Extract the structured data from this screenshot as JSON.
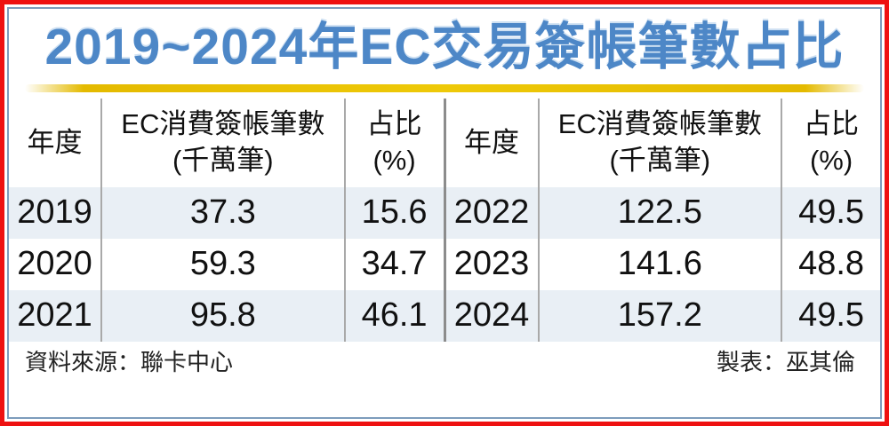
{
  "title": "2019~2024年EC交易簽帳筆數占比",
  "headers": {
    "year": "年度",
    "count_line1": "EC消費簽帳筆數",
    "count_line2": "(千萬筆)",
    "ratio_line1": "占比",
    "ratio_line2": "(%)"
  },
  "tables": [
    {
      "rows": [
        {
          "year": "2019",
          "count": "37.3",
          "ratio": "15.6"
        },
        {
          "year": "2020",
          "count": "59.3",
          "ratio": "34.7"
        },
        {
          "year": "2021",
          "count": "95.8",
          "ratio": "46.1"
        }
      ]
    },
    {
      "rows": [
        {
          "year": "2022",
          "count": "122.5",
          "ratio": "49.5"
        },
        {
          "year": "2023",
          "count": "141.6",
          "ratio": "48.8"
        },
        {
          "year": "2024",
          "count": "157.2",
          "ratio": "49.5"
        }
      ]
    }
  ],
  "footer": {
    "source": "資料來源：聯卡中心",
    "credit": "製表：巫其倫"
  },
  "colors": {
    "title_blue": "#4d87c7",
    "gold_rule": "#e4ba00",
    "row_stripe": "#e9eff5",
    "outer_border_red": "#ee1111",
    "inner_border_blue": "#7d9cbc",
    "divider_light": "#a9a9a9",
    "divider_dark": "#8c8c8c"
  },
  "chart_data": {
    "type": "table",
    "title": "2019~2024年EC交易簽帳筆數占比",
    "columns": [
      "年度",
      "EC消費簽帳筆數(千萬筆)",
      "占比(%)"
    ],
    "rows": [
      [
        "2019",
        37.3,
        15.6
      ],
      [
        "2020",
        59.3,
        34.7
      ],
      [
        "2021",
        95.8,
        46.1
      ],
      [
        "2022",
        122.5,
        49.5
      ],
      [
        "2023",
        141.6,
        48.8
      ],
      [
        "2024",
        157.2,
        49.5
      ]
    ],
    "source": "資料來源：聯卡中心",
    "credit": "製表：巫其倫"
  }
}
